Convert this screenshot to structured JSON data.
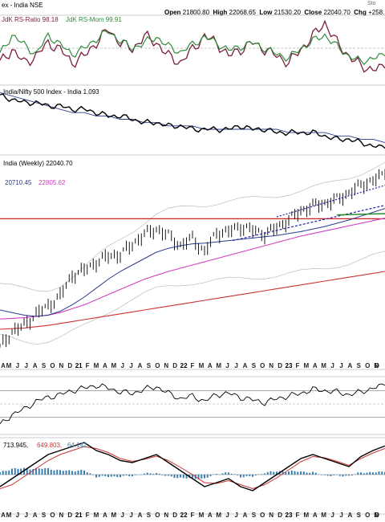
{
  "header": {
    "symbol": "ex - India NSE",
    "open_label": "Open",
    "open": "21800.80",
    "high_label": "High",
    "high": "22068.65",
    "low_label": "Low",
    "low": "21530.20",
    "close_label": "Close",
    "close": "22040.70",
    "chg_label": "Chg",
    "chg": "+258.",
    "source": "Sto"
  },
  "chart_data": [
    {
      "type": "line",
      "panel": "rrg",
      "series": [
        {
          "name": "JdK RS-Ratio",
          "value": "98.18",
          "color": "#7a1f3d",
          "values": [
            99,
            101,
            99,
            100,
            102,
            101,
            99,
            100,
            102,
            104,
            102,
            101,
            103,
            102,
            100,
            99,
            101,
            103,
            102,
            100,
            101,
            102,
            101,
            100,
            99,
            101,
            103,
            105,
            102,
            100,
            98.5,
            98,
            98.18
          ]
        },
        {
          "name": "JdK RS-Mom",
          "value": "99.91",
          "color": "#2e8b3d",
          "values": [
            100,
            101,
            100.5,
            100,
            101,
            100.5,
            100,
            100.3,
            100.8,
            101.2,
            100.7,
            100.3,
            100.6,
            100.9,
            100.4,
            100.1,
            100.5,
            100.9,
            100.6,
            100.2,
            100.4,
            100.6,
            100.3,
            100,
            99.8,
            100.3,
            100.7,
            101,
            100.4,
            99.9,
            99.6,
            99.8,
            99.91
          ]
        }
      ]
    },
    {
      "type": "line",
      "panel": "relative-strength",
      "series": [
        {
          "name": "India/Nifty 500 Index - India",
          "value": "1.093",
          "color": "#000000",
          "values": [
            1.25,
            1.24,
            1.23,
            1.23,
            1.22,
            1.22,
            1.21,
            1.21,
            1.2,
            1.19,
            1.19,
            1.18,
            1.17,
            1.17,
            1.16,
            1.16,
            1.15,
            1.15,
            1.15,
            1.15,
            1.16,
            1.15,
            1.15,
            1.14,
            1.14,
            1.14,
            1.14,
            1.13,
            1.12,
            1.12,
            1.11,
            1.1,
            1.093
          ]
        },
        {
          "name": "MA",
          "color": "#2b3a8f",
          "values": [
            1.26,
            1.25,
            1.24,
            1.23,
            1.22,
            1.21,
            1.2,
            1.2,
            1.19,
            1.19,
            1.18,
            1.18,
            1.17,
            1.17,
            1.16,
            1.16,
            1.16,
            1.15,
            1.15,
            1.15,
            1.15,
            1.15,
            1.15,
            1.15,
            1.14,
            1.14,
            1.14,
            1.14,
            1.13,
            1.13,
            1.12,
            1.12,
            1.11
          ]
        }
      ]
    },
    {
      "type": "line",
      "panel": "price",
      "title": "India (Weekly) 22040.70",
      "ma_values": [
        "20710.45",
        "22805.62"
      ],
      "ylim": [
        7500,
        23500
      ],
      "series": [
        {
          "name": "Price",
          "color": "#000000",
          "values": [
            8600,
            9800,
            10300,
            11200,
            11800,
            12600,
            14200,
            14600,
            15200,
            15700,
            15800,
            16600,
            17400,
            17800,
            17300,
            16500,
            17100,
            16000,
            17500,
            17600,
            18000,
            17700,
            17400,
            17900,
            18500,
            19200,
            19600,
            19800,
            20100,
            20600,
            21200,
            21600,
            22040
          ]
        },
        {
          "name": "MA 50",
          "color": "#2b3a8f",
          "values": [
            11500,
            11300,
            11100,
            11000,
            11100,
            11400,
            11900,
            12500,
            13200,
            13900,
            14500,
            15000,
            15500,
            16000,
            16300,
            16500,
            16650,
            16700,
            16800,
            16900,
            17000,
            17100,
            17200,
            17300,
            17450,
            17600,
            17800,
            18000,
            18250,
            18500,
            18800,
            19100,
            19400
          ]
        },
        {
          "name": "MA 100",
          "color": "#d040c0",
          "values": [
            10800,
            10850,
            10900,
            11000,
            11100,
            11300,
            11600,
            11900,
            12300,
            12700,
            13100,
            13500,
            13900,
            14200,
            14500,
            14750,
            15000,
            15250,
            15500,
            15750,
            16000,
            16250,
            16500,
            16750,
            17000,
            17250,
            17450,
            17650,
            17850,
            18050,
            18250,
            18450,
            18650
          ]
        },
        {
          "name": "MA 200",
          "color": "#cc3333",
          "values": [
            10000,
            10050,
            10100,
            10200,
            10300,
            10450,
            10600,
            10750,
            10900,
            11050,
            11200,
            11350,
            11500,
            11650,
            11800,
            11950,
            12100,
            12250,
            12400,
            12550,
            12700,
            12850,
            13000,
            13150,
            13300,
            13450,
            13600,
            13750,
            13900,
            14050,
            14200,
            14350,
            14500
          ]
        }
      ],
      "resistance_level": 18600
    },
    {
      "type": "line",
      "panel": "oscillator",
      "series": [
        {
          "name": "Oscillator",
          "color": "#000000",
          "values": [
            -80,
            -40,
            -20,
            10,
            25,
            35,
            50,
            60,
            70,
            60,
            45,
            40,
            55,
            65,
            40,
            20,
            30,
            10,
            35,
            40,
            25,
            15,
            5,
            20,
            30,
            40,
            55,
            50,
            45,
            35,
            45,
            60,
            70
          ]
        }
      ]
    },
    {
      "type": "line",
      "panel": "macd",
      "title": "713.945, 649.803, 64.142",
      "macd_values": [
        "713.945",
        "649.803",
        "64.142"
      ],
      "series": [
        {
          "name": "MACD",
          "color": "#000000",
          "values": [
            -300,
            -100,
            100,
            300,
            500,
            600,
            700,
            800,
            600,
            500,
            350,
            300,
            400,
            500,
            300,
            100,
            -100,
            -300,
            -200,
            -100,
            -300,
            -400,
            -200,
            0,
            200,
            400,
            500,
            400,
            300,
            200,
            450,
            600,
            714
          ]
        },
        {
          "name": "Signal",
          "color": "#cc3333",
          "values": [
            -350,
            -250,
            -50,
            150,
            350,
            500,
            600,
            700,
            650,
            550,
            400,
            330,
            380,
            460,
            350,
            180,
            0,
            -200,
            -220,
            -150,
            -250,
            -350,
            -250,
            -80,
            120,
            320,
            450,
            420,
            330,
            230,
            400,
            540,
            650
          ]
        },
        {
          "name": "Histogram",
          "color": "#3a7fb0",
          "values": [
            50,
            150,
            150,
            150,
            150,
            100,
            100,
            100,
            -50,
            -50,
            -50,
            -30,
            20,
            40,
            -50,
            -80,
            -100,
            -100,
            20,
            50,
            -50,
            -50,
            50,
            80,
            80,
            80,
            50,
            -20,
            -30,
            -30,
            50,
            60,
            64
          ]
        }
      ]
    }
  ],
  "x_axis_labels": [
    "A",
    "M",
    "J",
    "J",
    "A",
    "S",
    "O",
    "N",
    "D",
    "21",
    "F",
    "M",
    "A",
    "M",
    "J",
    "J",
    "A",
    "S",
    "O",
    "N",
    "D",
    "22",
    "F",
    "M",
    "A",
    "M",
    "J",
    "J",
    "A",
    "S",
    "O",
    "N",
    "D",
    "23",
    "F",
    "M",
    "A",
    "M",
    "J",
    "J",
    "A",
    "S",
    "O",
    "N",
    "D"
  ],
  "x_axis_bold": [
    "21",
    "22",
    "23"
  ]
}
